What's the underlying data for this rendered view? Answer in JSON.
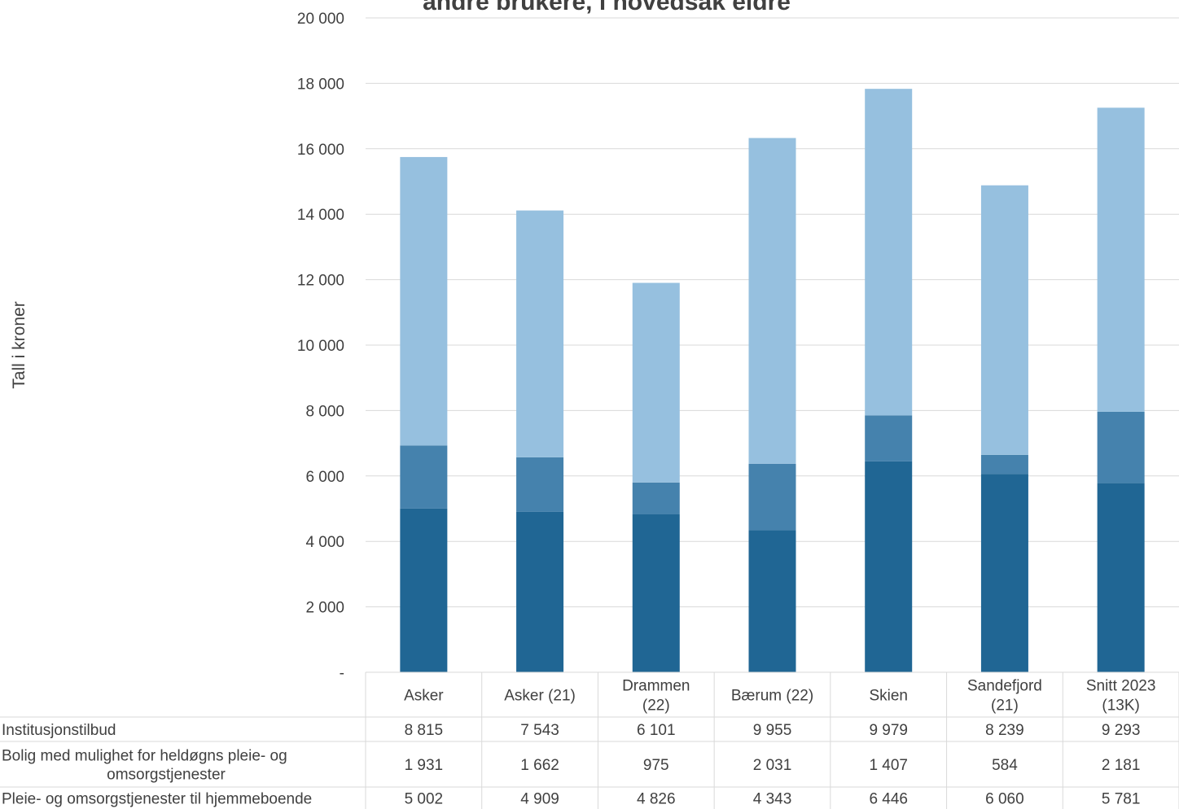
{
  "chart_data": {
    "type": "bar",
    "stacked": true,
    "title": "andre brukere, i hovedsak eldre",
    "ylabel": "Tall i kroner",
    "ylim": [
      0,
      20000
    ],
    "yticks": [
      0,
      2000,
      4000,
      6000,
      8000,
      10000,
      12000,
      14000,
      16000,
      18000,
      20000
    ],
    "ytick_labels": [
      "-",
      "2 000",
      "4 000",
      "6 000",
      "8 000",
      "10 000",
      "12 000",
      "14 000",
      "16 000",
      "18 000",
      "20 000"
    ],
    "grid": true,
    "categories": [
      [
        "Asker"
      ],
      [
        "Asker (21)"
      ],
      [
        "Drammen",
        "(22)"
      ],
      [
        "Bærum (22)"
      ],
      [
        "Skien"
      ],
      [
        "Sandefjord",
        "(21)"
      ],
      [
        "Snitt 2023",
        "(13K)"
      ]
    ],
    "series": [
      {
        "name": "Pleie- og omsorgstjenester til hjemmeboende",
        "name_lines": [
          "Pleie- og omsorgstjenester til hjemmeboende"
        ],
        "color": "#206694",
        "values": [
          5002,
          4909,
          4826,
          4343,
          6446,
          6060,
          5781
        ],
        "labels": [
          "5 002",
          "4 909",
          "4 826",
          "4 343",
          "6 446",
          "6 060",
          "5 781"
        ]
      },
      {
        "name": "Bolig med mulighet for heldøgns pleie- og omsorgstjenester",
        "name_lines": [
          "Bolig med mulighet for heldøgns pleie- og",
          "omsorgstjenester"
        ],
        "color": "#4582ad",
        "values": [
          1931,
          1662,
          975,
          2031,
          1407,
          584,
          2181
        ],
        "labels": [
          "1 931",
          "1 662",
          "975",
          "2 031",
          "1 407",
          "584",
          "2 181"
        ]
      },
      {
        "name": "Institusjonstilbud",
        "name_lines": [
          "Institusjonstilbud"
        ],
        "color": "#96c0df",
        "values": [
          8815,
          7543,
          6101,
          9955,
          9979,
          8239,
          9293
        ],
        "labels": [
          "8 815",
          "7 543",
          "6 101",
          "9 955",
          "9 979",
          "8 239",
          "9 293"
        ]
      }
    ],
    "table_row_order": [
      2,
      1,
      0
    ]
  }
}
